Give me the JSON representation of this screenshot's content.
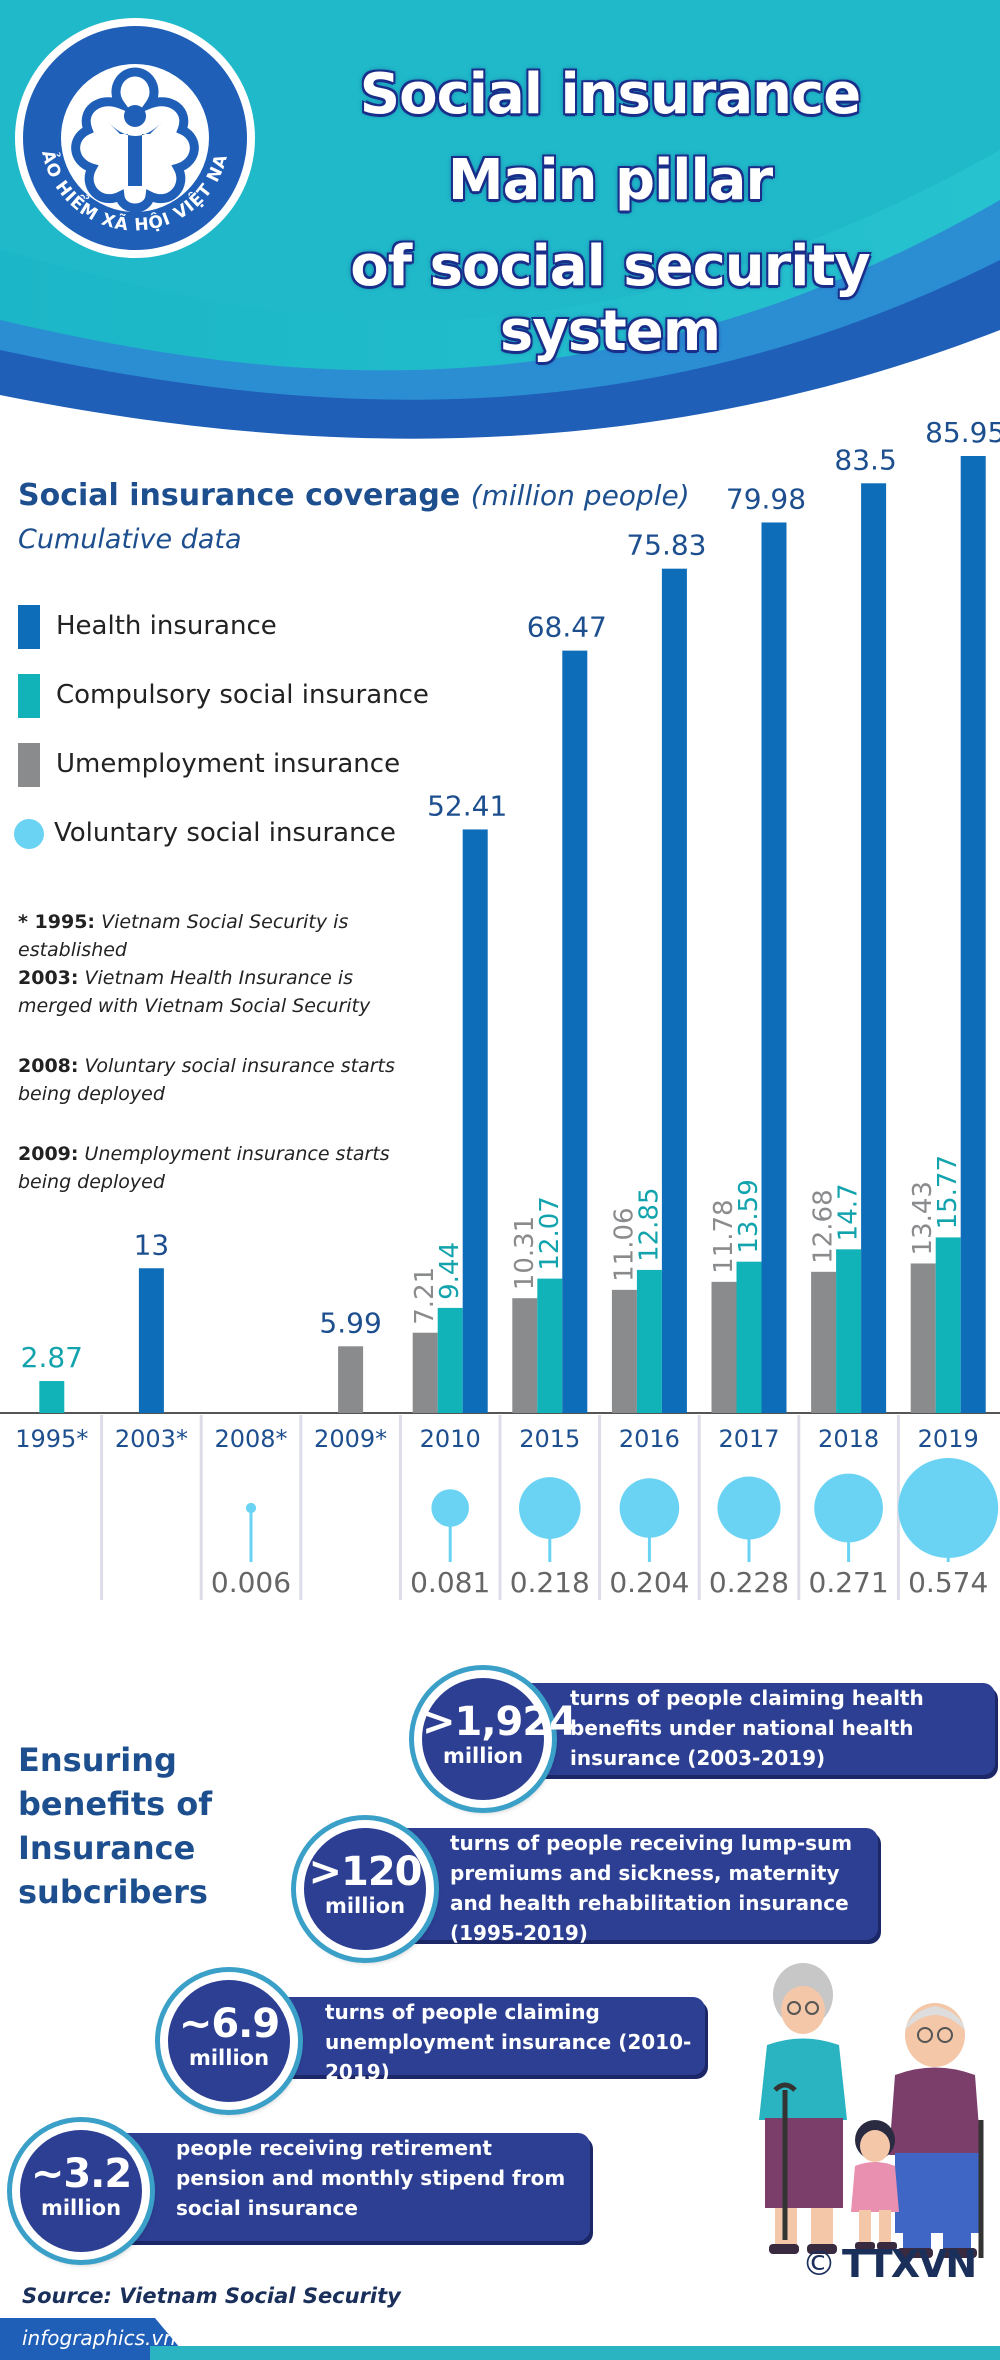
{
  "header": {
    "title_lines": [
      "Social insurance",
      "Main pillar",
      "of social security system"
    ],
    "logo_text": "BẢO HIỂM XÃ HỘI VIỆT NAM"
  },
  "legend": {
    "title": "Social insurance coverage",
    "unit": "(million people)",
    "subtitle": "Cumulative data",
    "items": [
      {
        "label": "Health insurance",
        "color": "#0d6db8",
        "shape": "bar"
      },
      {
        "label": "Compulsory social insurance",
        "color": "#12b3b8",
        "shape": "bar"
      },
      {
        "label": "Umemployment insurance",
        "color": "#8a8b8d",
        "shape": "bar"
      },
      {
        "label": "Voluntary social insurance",
        "color": "#6ad3f3",
        "shape": "circle"
      }
    ]
  },
  "notes": [
    {
      "year": "* 1995:",
      "text": "Vietnam Social Security is established"
    },
    {
      "year": "2003:",
      "text": "Vietnam Health Insurance is merged with Vietnam Social Security"
    },
    {
      "year": "2008:",
      "text": "Voluntary social insurance starts being deployed"
    },
    {
      "year": "2009:",
      "text": "Unemployment insurance starts being deployed"
    }
  ],
  "chart_data": {
    "type": "bar",
    "title": "Social insurance coverage",
    "ylabel": "(million people)",
    "categories": [
      "1995*",
      "2003*",
      "2008*",
      "2009*",
      "2010",
      "2015",
      "2016",
      "2017",
      "2018",
      "2019"
    ],
    "series": [
      {
        "name": "Umemployment insurance",
        "color": "#8a8b8d",
        "values": [
          null,
          null,
          null,
          5.99,
          7.21,
          10.31,
          11.06,
          11.78,
          12.68,
          13.43
        ]
      },
      {
        "name": "Compulsory social insurance",
        "color": "#12b3b8",
        "values": [
          2.87,
          null,
          null,
          null,
          9.44,
          12.07,
          12.85,
          13.59,
          14.7,
          15.77
        ]
      },
      {
        "name": "Health insurance",
        "color": "#0d6db8",
        "values": [
          null,
          13,
          null,
          null,
          52.41,
          68.47,
          75.83,
          79.98,
          83.5,
          85.95
        ]
      }
    ],
    "value_labels": {
      "Umemployment insurance": [
        "",
        "",
        "",
        "5.99",
        "7.21",
        "10.31",
        "11.06",
        "11.78",
        "12.68",
        "13.43"
      ],
      "Compulsory social insurance": [
        "2.87",
        "",
        "",
        "",
        "9.44",
        "12.07",
        "12.85",
        "13.59",
        "14.7",
        "15.77"
      ],
      "Health insurance": [
        "",
        "13",
        "",
        "",
        "52.41",
        "68.47",
        "75.83",
        "79.98",
        "83.5",
        "85.95"
      ]
    },
    "voluntary": {
      "name": "Voluntary social insurance",
      "color": "#6ad3f3",
      "values": [
        null,
        null,
        0.006,
        null,
        0.081,
        0.218,
        0.204,
        0.228,
        0.271,
        0.574
      ],
      "labels": [
        "",
        "",
        "0.006",
        "",
        "0.081",
        "0.218",
        "0.204",
        "0.228",
        "0.271",
        "0.574"
      ]
    },
    "ylim": [
      0,
      90
    ]
  },
  "benefits": {
    "heading": "Ensuring benefits of Insurance subcribers",
    "items": [
      {
        "value": ">1,924",
        "unit": "million",
        "text": "turns of people claiming health benefits under national health insurance (2003-2019)"
      },
      {
        "value": ">120",
        "unit": "million",
        "text": "turns of people receiving lump-sum premiums and sickness, maternity and health rehabilitation insurance (1995-2019)"
      },
      {
        "value": "~6.9",
        "unit": "million",
        "text": "turns of people claiming unemployment insurance (2010-2019)"
      },
      {
        "value": "~3.2",
        "unit": "million",
        "text": "people receiving retirement pension and monthly stipend from social insurance"
      }
    ]
  },
  "source": "Source: Vietnam Social Security",
  "footer": {
    "site": "infographics.vn",
    "copyright": "©",
    "agency": "TTXVN"
  }
}
